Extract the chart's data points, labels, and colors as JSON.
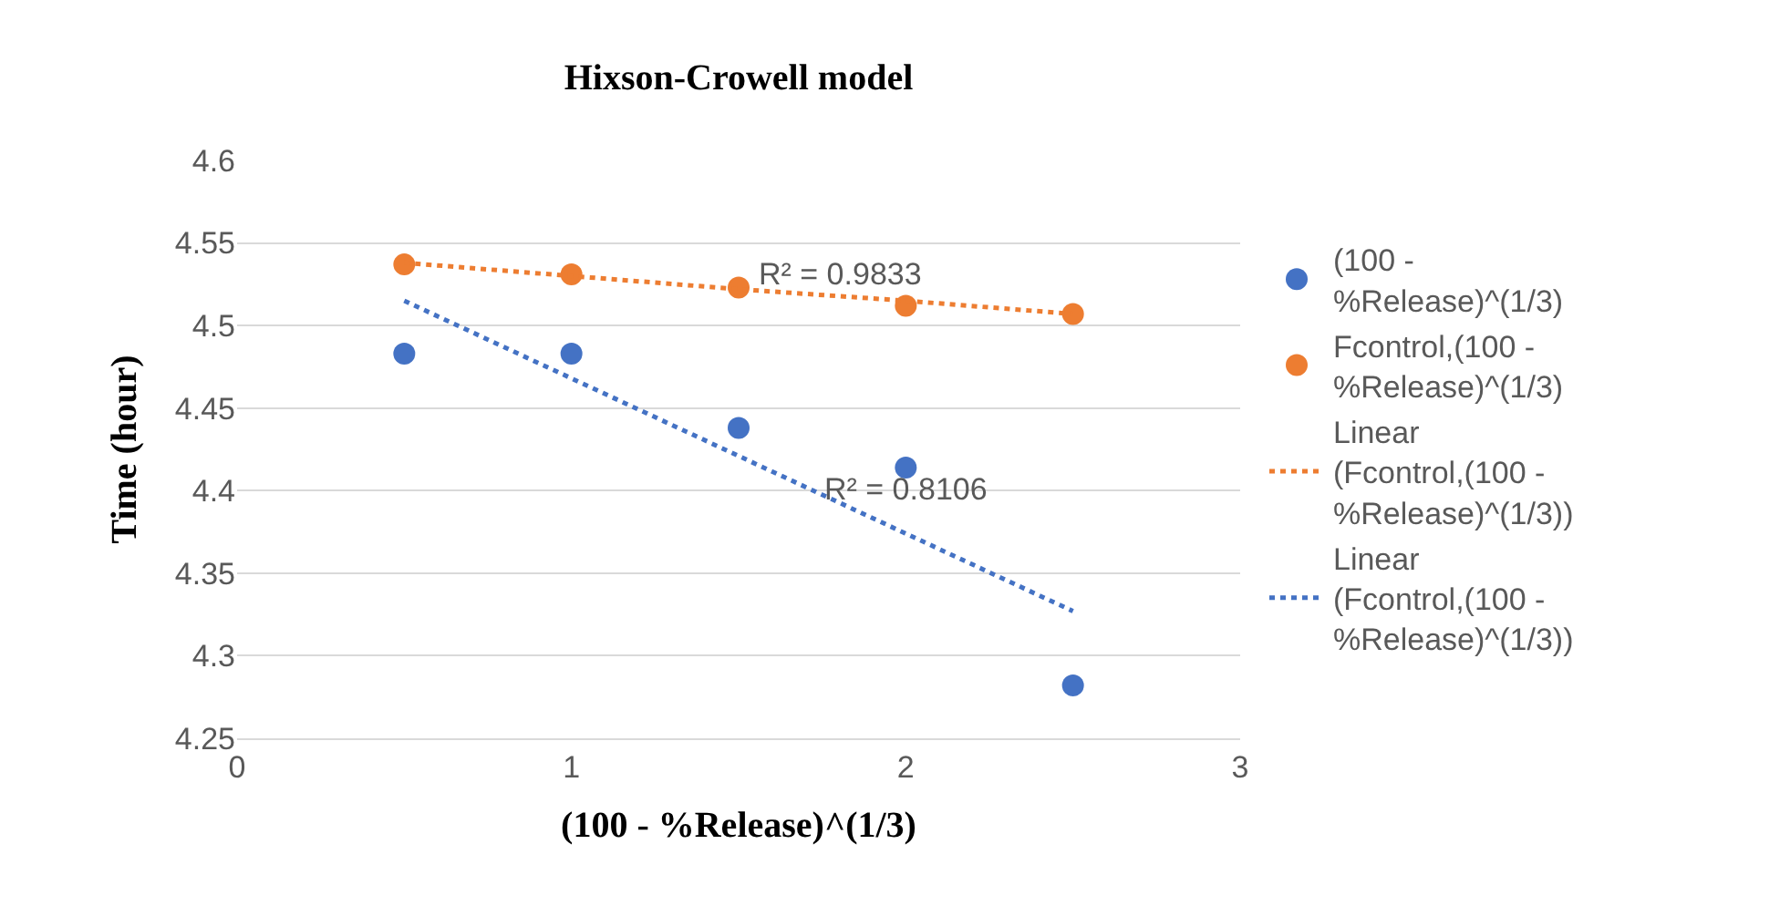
{
  "chart_data": {
    "type": "scatter",
    "title": "Hixson-Crowell model",
    "xlabel": "(100 - %Release)^(1/3)",
    "ylabel": "Time (hour)",
    "x": [
      0.5,
      1,
      1.5,
      2,
      2.5
    ],
    "series": [
      {
        "name": "(100 - %Release)^(1/3)",
        "color": "#4472c4",
        "values": [
          4.483,
          4.483,
          4.438,
          4.414,
          4.282
        ],
        "marker": "circle"
      },
      {
        "name": "Fcontrol,(100 - %Release)^(1/3)",
        "color": "#ed7d31",
        "values": [
          4.537,
          4.531,
          4.523,
          4.512,
          4.507
        ],
        "marker": "circle"
      },
      {
        "name": "Linear (Fcontrol,(100 - %Release)^(1/3))",
        "type": "line",
        "color": "#ed7d31",
        "values": [
          4.538,
          4.53,
          4.522,
          4.515,
          4.507
        ],
        "marker": "none",
        "line_style": "dotted"
      },
      {
        "name": "Linear (Fcontrol,(100 - %Release)^(1/3))",
        "type": "line",
        "color": "#4472c4",
        "values": [
          4.515,
          4.468,
          4.421,
          4.374,
          4.327
        ],
        "marker": "none",
        "line_style": "dotted"
      }
    ],
    "annotations": [
      "R² = 0.9833",
      "R² = 0.8106"
    ],
    "xlim": [
      0,
      3
    ],
    "xticks": [
      0,
      1,
      2,
      3
    ],
    "ylim": [
      4.25,
      4.6
    ],
    "yticks": [
      4.25,
      4.3,
      4.35,
      4.4,
      4.45,
      4.5,
      4.55,
      4.6
    ],
    "grid": "y",
    "legend": "right"
  }
}
